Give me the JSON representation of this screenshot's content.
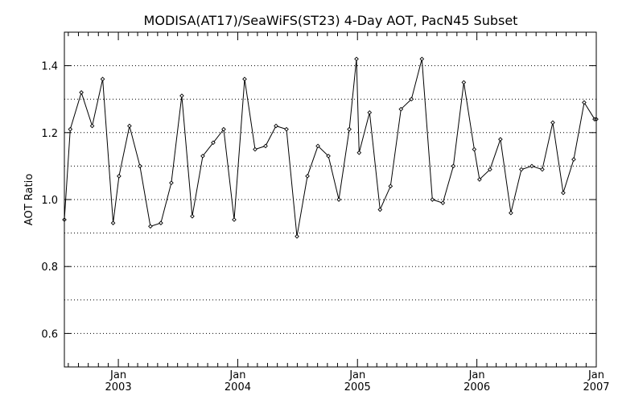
{
  "chart_data": {
    "type": "line",
    "title": "MODISA(AT17)/SeaWiFS(ST23) 4-Day AOT, PacN45 Subset",
    "ylabel": "AOT Ratio",
    "xlabel": "",
    "ylim": [
      0.5,
      1.5
    ],
    "xlim": [
      "2002-07-20",
      "2007-01-01"
    ],
    "y_ticks": [
      0.6,
      0.8,
      1.0,
      1.2,
      1.4
    ],
    "y_tick_labels": [
      "0.6",
      "0.8",
      "1.0",
      "1.2",
      "1.4"
    ],
    "x_ticks": [
      {
        "date": "2003-01-01",
        "month": "Jan",
        "year": "2003"
      },
      {
        "date": "2004-01-01",
        "month": "Jan",
        "year": "2004"
      },
      {
        "date": "2005-01-01",
        "month": "Jan",
        "year": "2005"
      },
      {
        "date": "2006-01-01",
        "month": "Jan",
        "year": "2006"
      },
      {
        "date": "2007-01-01",
        "month": "Jan",
        "year": "2007"
      }
    ],
    "grid": {
      "horizontal": true,
      "vertical": false,
      "style": "dotted"
    },
    "colors": {
      "line": "#000000",
      "axes": "#000000",
      "background": "#ffffff"
    },
    "series": [
      {
        "x": [
          "2002-07-20",
          "2002-08-07",
          "2002-09-10",
          "2002-10-13",
          "2002-11-14",
          "2002-12-16",
          "2003-01-03",
          "2003-02-04",
          "2003-03-08",
          "2003-04-09",
          "2003-05-11",
          "2003-06-12",
          "2003-07-14",
          "2003-08-15",
          "2003-09-16",
          "2003-10-18",
          "2003-11-19",
          "2003-12-21",
          "2004-01-22",
          "2004-02-23",
          "2004-03-26",
          "2004-04-27",
          "2004-05-29",
          "2004-06-30",
          "2004-08-01",
          "2004-09-02",
          "2004-10-04",
          "2004-11-05",
          "2004-12-07",
          "2004-12-29",
          "2005-01-06",
          "2005-02-07",
          "2005-03-11",
          "2005-04-12",
          "2005-05-14",
          "2005-06-15",
          "2005-07-17",
          "2005-08-18",
          "2005-09-19",
          "2005-10-21",
          "2005-11-22",
          "2005-12-24",
          "2006-01-09",
          "2006-02-10",
          "2006-03-14",
          "2006-04-15",
          "2006-05-17",
          "2006-06-18",
          "2006-07-20",
          "2006-08-21",
          "2006-09-22",
          "2006-10-24",
          "2006-11-25",
          "2006-12-27",
          "2007-01-01"
        ],
        "y": [
          0.94,
          1.21,
          1.32,
          1.22,
          1.36,
          0.93,
          1.07,
          1.22,
          1.1,
          0.92,
          0.93,
          1.05,
          1.31,
          0.95,
          1.13,
          1.17,
          1.21,
          0.94,
          1.36,
          1.15,
          1.16,
          1.22,
          1.21,
          0.89,
          1.07,
          1.16,
          1.13,
          1.0,
          1.21,
          1.42,
          1.14,
          1.26,
          0.97,
          1.04,
          1.27,
          1.3,
          1.42,
          1.0,
          0.99,
          1.1,
          1.35,
          1.15,
          1.06,
          1.09,
          1.18,
          0.96,
          1.09,
          1.1,
          1.09,
          1.23,
          1.02,
          1.12,
          1.29,
          1.24,
          1.24
        ]
      }
    ]
  }
}
